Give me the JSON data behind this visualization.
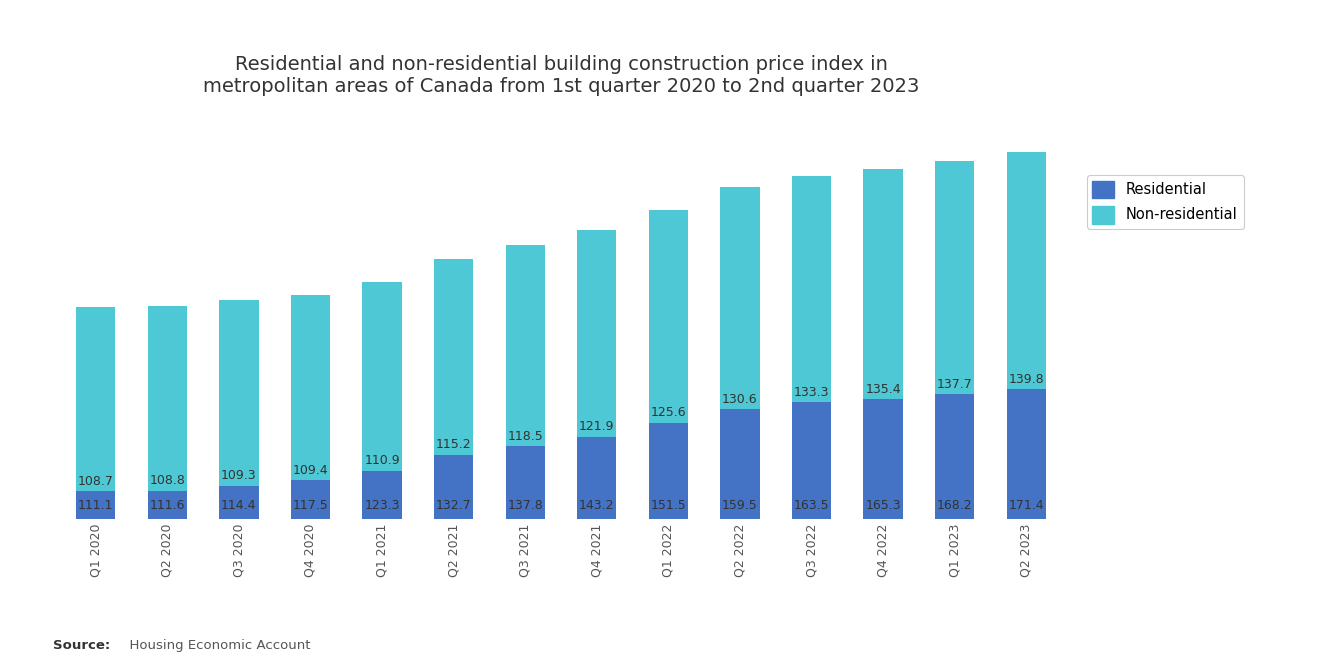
{
  "title": "Residential and non-residential building construction price index in\nmetropolitan areas of Canada from 1st quarter 2020 to 2nd quarter 2023",
  "categories": [
    "Q1 2020",
    "Q2 2020",
    "Q3 2020",
    "Q4 2020",
    "Q1 2021",
    "Q2 2021",
    "Q3 2021",
    "Q4 2021",
    "Q1 2022",
    "Q2 2022",
    "Q3 2022",
    "Q4 2022",
    "Q1 2023",
    "Q2 2023"
  ],
  "residential": [
    111.1,
    111.6,
    114.4,
    117.5,
    123.3,
    132.7,
    137.8,
    143.2,
    151.5,
    159.5,
    163.5,
    165.3,
    168.2,
    171.4
  ],
  "non_residential": [
    108.7,
    108.8,
    109.3,
    109.4,
    110.9,
    115.2,
    118.5,
    121.9,
    125.6,
    130.6,
    133.3,
    135.4,
    137.7,
    139.8
  ],
  "residential_color": "#4472c4",
  "non_residential_color": "#4dc8d4",
  "background_color": "#ffffff",
  "title_fontsize": 14,
  "label_fontsize": 9,
  "tick_fontsize": 9,
  "source_bold": "Source:",
  "source_rest": "  Housing Economic Account",
  "legend_labels": [
    "Residential",
    "Non-residential"
  ],
  "y_min": 95,
  "y_max": 330
}
